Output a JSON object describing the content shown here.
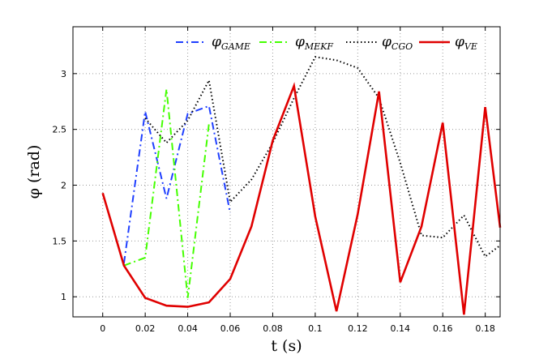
{
  "chart_data": {
    "type": "line",
    "xlabel": "t (s)",
    "ylabel": "φ (rad)",
    "xlim": [
      -0.014,
      0.187
    ],
    "ylim": [
      0.82,
      3.42
    ],
    "xticks": [
      0,
      0.02,
      0.04,
      0.06,
      0.08,
      0.1,
      0.12,
      0.14,
      0.16,
      0.18
    ],
    "xtick_labels": [
      "0",
      "0.02",
      "0.04",
      "0.06",
      "0.08",
      "0.1",
      "0.12",
      "0.14",
      "0.16",
      "0.18"
    ],
    "yticks": [
      1,
      1.5,
      2,
      2.5,
      3
    ],
    "ytick_labels": [
      "1",
      "1.5",
      "2",
      "2.5",
      "3"
    ],
    "grid": true,
    "legend_position": "top-right",
    "series": [
      {
        "name": "φ_GAME",
        "base": "φ",
        "sub": "GAME",
        "color": "#1f3fff",
        "dash": "9,4,2,4",
        "x": [
          0.01,
          0.02,
          0.03,
          0.04,
          0.05,
          0.06
        ],
        "y": [
          1.3,
          2.66,
          1.88,
          2.64,
          2.71,
          1.75
        ]
      },
      {
        "name": "φ_MEKF",
        "base": "φ",
        "sub": "MEKF",
        "color": "#44ff00",
        "dash": "9,4,2,4",
        "x": [
          0.01,
          0.02,
          0.03,
          0.04,
          0.05
        ],
        "y": [
          1.28,
          1.35,
          2.86,
          0.99,
          2.55
        ]
      },
      {
        "name": "φ_CGO",
        "base": "φ",
        "sub": "CGO",
        "color": "#000000",
        "dash": "1.5,3",
        "x": [
          0.02,
          0.03,
          0.04,
          0.05,
          0.06,
          0.07,
          0.08,
          0.09,
          0.1,
          0.11,
          0.12,
          0.13,
          0.14,
          0.15,
          0.16,
          0.17,
          0.18,
          0.187
        ],
        "y": [
          2.6,
          2.38,
          2.58,
          2.94,
          1.85,
          2.05,
          2.38,
          2.78,
          3.15,
          3.12,
          3.05,
          2.78,
          2.2,
          1.55,
          1.53,
          1.73,
          1.36,
          1.46
        ]
      },
      {
        "name": "φ_VE",
        "base": "φ",
        "sub": "VE",
        "color": "#e00000",
        "dash": "",
        "x": [
          0,
          0.01,
          0.02,
          0.03,
          0.04,
          0.05,
          0.06,
          0.07,
          0.08,
          0.09,
          0.1,
          0.11,
          0.12,
          0.13,
          0.14,
          0.15,
          0.16,
          0.17,
          0.18,
          0.187
        ],
        "y": [
          1.93,
          1.28,
          0.99,
          0.92,
          0.91,
          0.95,
          1.16,
          1.63,
          2.4,
          2.89,
          1.72,
          0.87,
          1.74,
          2.84,
          1.13,
          1.63,
          2.56,
          0.84,
          2.7,
          1.62
        ]
      }
    ]
  }
}
